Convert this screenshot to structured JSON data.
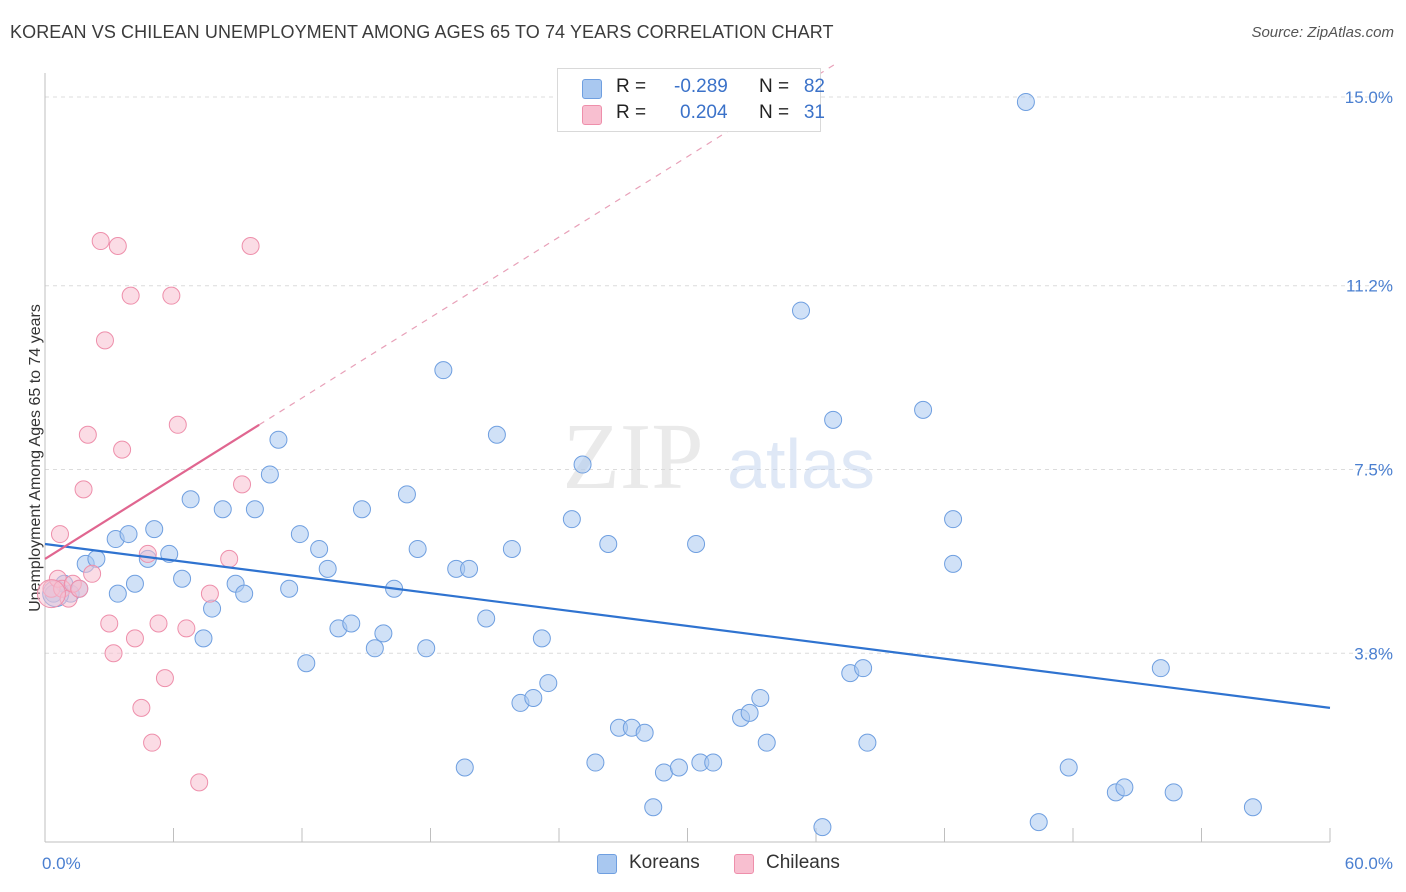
{
  "title": "KOREAN VS CHILEAN UNEMPLOYMENT AMONG AGES 65 TO 74 YEARS CORRELATION CHART",
  "source": "Source: ZipAtlas.com",
  "watermark": {
    "zip": "ZIP",
    "atlas": "atlas"
  },
  "legend": {
    "rows": [
      {
        "r_label": "R =",
        "r_value": "-0.289",
        "n_label": "N =",
        "n_value": "82",
        "color": "#a9c8f0",
        "border": "#6f9fe0"
      },
      {
        "r_label": "R =",
        "r_value": "0.204",
        "n_label": "N =",
        "n_value": "31",
        "color": "#f8bfd0",
        "border": "#ee8fab"
      }
    ]
  },
  "bottom_legend": {
    "koreans": "Koreans",
    "chileans": "Chileans"
  },
  "chart_data": {
    "type": "scatter",
    "title": "KOREAN VS CHILEAN UNEMPLOYMENT AMONG AGES 65 TO 74 YEARS CORRELATION CHART",
    "xlabel": "",
    "ylabel": "Unemployment Among Ages 65 to 74 years",
    "xlim": [
      0,
      60
    ],
    "ylim": [
      0,
      15.5
    ],
    "x_tick_labels": [
      "0.0%",
      "60.0%"
    ],
    "y_ticks": [
      3.8,
      7.5,
      11.2,
      15.0
    ],
    "y_tick_labels": [
      "3.8%",
      "7.5%",
      "11.2%",
      "15.0%"
    ],
    "grid": true,
    "series": [
      {
        "name": "Koreans",
        "color": "#6f9fe0",
        "fill": "#a9c8f0",
        "trend": {
          "x1": 0,
          "y1": 6.0,
          "x2": 60,
          "y2": 2.7,
          "color": "#2f73d0"
        },
        "points": [
          [
            0.4,
            5.0
          ],
          [
            1.2,
            5.0
          ],
          [
            1.6,
            5.1
          ],
          [
            1.9,
            5.6
          ],
          [
            2.4,
            5.7
          ],
          [
            3.3,
            6.1
          ],
          [
            3.9,
            6.2
          ],
          [
            3.4,
            5.0
          ],
          [
            4.2,
            5.2
          ],
          [
            4.8,
            5.7
          ],
          [
            5.1,
            6.3
          ],
          [
            5.8,
            5.8
          ],
          [
            6.4,
            5.3
          ],
          [
            6.8,
            6.9
          ],
          [
            7.4,
            4.1
          ],
          [
            7.8,
            4.7
          ],
          [
            8.3,
            6.7
          ],
          [
            8.9,
            5.2
          ],
          [
            9.3,
            5.0
          ],
          [
            9.8,
            6.7
          ],
          [
            10.5,
            7.4
          ],
          [
            10.9,
            8.1
          ],
          [
            11.4,
            5.1
          ],
          [
            11.9,
            6.2
          ],
          [
            12.2,
            3.6
          ],
          [
            12.8,
            5.9
          ],
          [
            13.2,
            5.5
          ],
          [
            13.7,
            4.3
          ],
          [
            14.3,
            4.4
          ],
          [
            14.8,
            6.7
          ],
          [
            15.4,
            3.9
          ],
          [
            15.8,
            4.2
          ],
          [
            16.3,
            5.1
          ],
          [
            16.9,
            7.0
          ],
          [
            17.4,
            5.9
          ],
          [
            17.8,
            3.9
          ],
          [
            18.6,
            9.5
          ],
          [
            19.2,
            5.5
          ],
          [
            19.6,
            1.5
          ],
          [
            19.8,
            5.5
          ],
          [
            20.6,
            4.5
          ],
          [
            21.1,
            8.2
          ],
          [
            21.8,
            5.9
          ],
          [
            22.2,
            2.8
          ],
          [
            22.8,
            2.9
          ],
          [
            23.2,
            4.1
          ],
          [
            23.5,
            3.2
          ],
          [
            24.6,
            6.5
          ],
          [
            25.1,
            7.6
          ],
          [
            25.7,
            1.6
          ],
          [
            26.3,
            6.0
          ],
          [
            26.8,
            2.3
          ],
          [
            27.4,
            2.3
          ],
          [
            28.0,
            2.2
          ],
          [
            28.4,
            0.7
          ],
          [
            28.9,
            1.4
          ],
          [
            29.6,
            1.5
          ],
          [
            30.4,
            6.0
          ],
          [
            30.6,
            1.6
          ],
          [
            31.2,
            1.6
          ],
          [
            32.5,
            2.5
          ],
          [
            32.9,
            2.6
          ],
          [
            33.4,
            2.9
          ],
          [
            33.7,
            2.0
          ],
          [
            35.3,
            10.7
          ],
          [
            36.3,
            0.3
          ],
          [
            36.8,
            8.5
          ],
          [
            37.6,
            3.4
          ],
          [
            38.2,
            3.5
          ],
          [
            38.4,
            2.0
          ],
          [
            41.0,
            8.7
          ],
          [
            42.4,
            5.6
          ],
          [
            42.4,
            6.5
          ],
          [
            45.8,
            14.9
          ],
          [
            46.4,
            0.4
          ],
          [
            47.8,
            1.5
          ],
          [
            50.0,
            1.0
          ],
          [
            50.4,
            1.1
          ],
          [
            52.1,
            3.5
          ],
          [
            52.7,
            1.0
          ],
          [
            56.4,
            0.7
          ],
          [
            0.9,
            5.2
          ]
        ]
      },
      {
        "name": "Chileans",
        "color": "#ee8fab",
        "fill": "#f8bfd0",
        "trend": {
          "x1": 0,
          "y1": 5.7,
          "x2": 10,
          "y2": 8.4,
          "color": "#e06690",
          "extend_to": {
            "x": 60,
            "y": 21.9
          }
        },
        "points": [
          [
            0.3,
            5.1
          ],
          [
            0.6,
            5.3
          ],
          [
            0.7,
            6.2
          ],
          [
            0.8,
            5.1
          ],
          [
            1.1,
            4.9
          ],
          [
            1.3,
            5.2
          ],
          [
            1.6,
            5.1
          ],
          [
            1.8,
            7.1
          ],
          [
            2.0,
            8.2
          ],
          [
            2.2,
            5.4
          ],
          [
            2.6,
            12.1
          ],
          [
            2.8,
            10.1
          ],
          [
            3.0,
            4.4
          ],
          [
            3.2,
            3.8
          ],
          [
            3.4,
            12.0
          ],
          [
            3.6,
            7.9
          ],
          [
            4.0,
            11.0
          ],
          [
            4.2,
            4.1
          ],
          [
            4.5,
            2.7
          ],
          [
            4.8,
            5.8
          ],
          [
            5.0,
            2.0
          ],
          [
            5.3,
            4.4
          ],
          [
            5.6,
            3.3
          ],
          [
            5.9,
            11.0
          ],
          [
            6.2,
            8.4
          ],
          [
            6.6,
            4.3
          ],
          [
            7.2,
            1.2
          ],
          [
            7.7,
            5.0
          ],
          [
            8.6,
            5.7
          ],
          [
            9.2,
            7.2
          ],
          [
            9.6,
            12.0
          ]
        ]
      }
    ]
  }
}
